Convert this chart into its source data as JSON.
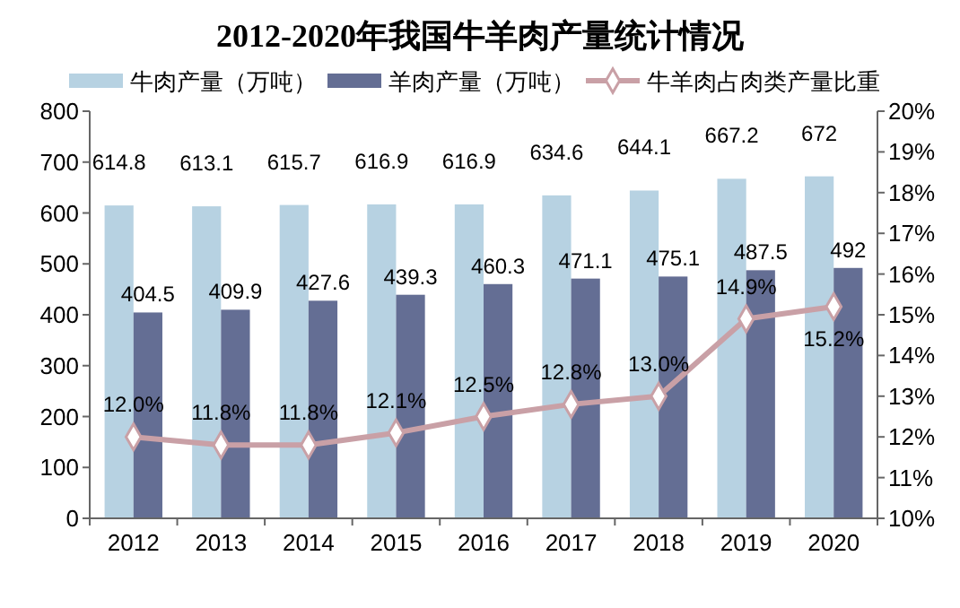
{
  "chart_data": {
    "type": "bar",
    "title": "2012-2020年我国牛羊肉产量统计情况",
    "categories": [
      "2012",
      "2013",
      "2014",
      "2015",
      "2016",
      "2017",
      "2018",
      "2019",
      "2020"
    ],
    "series": [
      {
        "name": "牛肉产量（万吨）",
        "color": "#b7d2e2",
        "values": [
          614.8,
          613.1,
          615.7,
          616.9,
          616.9,
          634.6,
          644.1,
          667.2,
          672
        ],
        "value_labels": [
          "614.8",
          "613.1",
          "615.7",
          "616.9",
          "616.9",
          "634.6",
          "644.1",
          "667.2",
          "672"
        ]
      },
      {
        "name": "羊肉产量（万吨）",
        "color": "#646e94",
        "values": [
          404.5,
          409.9,
          427.6,
          439.3,
          460.3,
          471.1,
          475.1,
          487.5,
          492
        ],
        "value_labels": [
          "404.5",
          "409.9",
          "427.6",
          "439.3",
          "460.3",
          "471.1",
          "475.1",
          "487.5",
          "492"
        ]
      },
      {
        "name": "牛羊肉占肉类产量比重",
        "type": "line",
        "axis": "y2",
        "color": "#c9a0a6",
        "marker": "diamond",
        "values": [
          12.0,
          11.8,
          11.8,
          12.1,
          12.5,
          12.8,
          13.0,
          14.9,
          15.2
        ],
        "value_labels": [
          "12.0%",
          "11.8%",
          "11.8%",
          "12.1%",
          "12.5%",
          "12.8%",
          "13.0%",
          "14.9%",
          "15.2%"
        ]
      }
    ],
    "ylim": [
      0,
      800
    ],
    "yticks": [
      0,
      100,
      200,
      300,
      400,
      500,
      600,
      700,
      800
    ],
    "y2lim": [
      10,
      20
    ],
    "y2ticks": [
      {
        "value": 10,
        "label": "10%"
      },
      {
        "value": 11,
        "label": "11%"
      },
      {
        "value": 12,
        "label": "12%"
      },
      {
        "value": 13,
        "label": "13%"
      },
      {
        "value": 14,
        "label": "14%"
      },
      {
        "value": 15,
        "label": "15%"
      },
      {
        "value": 16,
        "label": "16%"
      },
      {
        "value": 17,
        "label": "17%"
      },
      {
        "value": 18,
        "label": "18%"
      },
      {
        "value": 19,
        "label": "19%"
      },
      {
        "value": 20,
        "label": "20%"
      }
    ],
    "legend": "top",
    "grid": false
  }
}
